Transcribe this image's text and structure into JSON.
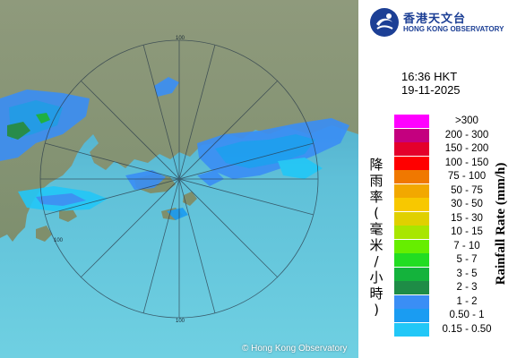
{
  "map": {
    "copyright": "© Hong Kong Observatory",
    "range_labels": [
      "100",
      "100",
      "100"
    ],
    "colors": {
      "sea": "#4aa7c9",
      "land": "#8d9a78",
      "range_ring": "#2a3b4a"
    }
  },
  "header": {
    "logo_cn": "香港天文台",
    "logo_en": "HONG KONG OBSERVATORY",
    "logo_icon": "hko-logo-icon",
    "time": "16:36 HKT",
    "date": "19-11-2025"
  },
  "legend": {
    "title_cn": "降雨率(毫米/小時)",
    "title_en": "Rainfall Rate (mm/h)",
    "items": [
      {
        "label": ">300",
        "color": "#ff00ff"
      },
      {
        "label": "200 - 300",
        "color": "#c4007f"
      },
      {
        "label": "150 - 200",
        "color": "#e4002b"
      },
      {
        "label": "100 - 150",
        "color": "#ff0000"
      },
      {
        "label": "75 - 100",
        "color": "#f07800"
      },
      {
        "label": "50 - 75",
        "color": "#f2a800"
      },
      {
        "label": "30 - 50",
        "color": "#f8c800"
      },
      {
        "label": "15 - 30",
        "color": "#e0d000"
      },
      {
        "label": "10 - 15",
        "color": "#a8e600"
      },
      {
        "label": "7 - 10",
        "color": "#66ee00"
      },
      {
        "label": "5 - 7",
        "color": "#22dd22"
      },
      {
        "label": "3 - 5",
        "color": "#14b33c"
      },
      {
        "label": "2 - 3",
        "color": "#1e8c46"
      },
      {
        "label": "1 - 2",
        "color": "#3a8ef5"
      },
      {
        "label": "0.50 - 1",
        "color": "#1a9cf2"
      },
      {
        "label": "0.15 - 0.50",
        "color": "#22c7f7"
      }
    ]
  }
}
